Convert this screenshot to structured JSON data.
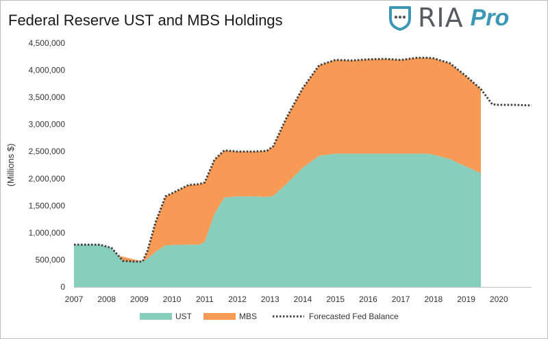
{
  "header": {
    "title": "Federal Reserve UST and MBS Holdings",
    "logo_text": "RIA",
    "logo_pro": "Pro"
  },
  "colors": {
    "ust": "#88cebc",
    "mbs": "#f79a55",
    "forecast": "#404040",
    "logo_gray": "#555b60",
    "logo_blue": "#3a97b5"
  },
  "chart_data": {
    "type": "area",
    "title": "Federal Reserve UST and MBS Holdings",
    "xlabel": "",
    "ylabel": "(Millions $)",
    "xlim": [
      2007,
      2021
    ],
    "ylim": [
      0,
      4500000
    ],
    "yticks": [
      0,
      500000,
      1000000,
      1500000,
      2000000,
      2500000,
      3000000,
      3500000,
      4000000,
      4500000
    ],
    "ytick_labels": [
      "0",
      "500,000",
      "1,000,000",
      "1,500,000",
      "2,000,000",
      "2,500,000",
      "3,000,000",
      "3,500,000",
      "4,000,000",
      "4,500,000"
    ],
    "xticks": [
      2007,
      2008,
      2009,
      2010,
      2011,
      2012,
      2013,
      2014,
      2015,
      2016,
      2017,
      2018,
      2019,
      2020
    ],
    "xtick_labels": [
      "2007",
      "2008",
      "2009",
      "2010",
      "2011",
      "2012",
      "2013",
      "2014",
      "2015",
      "2016",
      "2017",
      "2018",
      "2019",
      "2020"
    ],
    "grid": false,
    "stacked": true,
    "series": [
      {
        "name": "UST",
        "x": [
          2007,
          2007.8,
          2008.15,
          2008.5,
          2008.8,
          2009.1,
          2009.25,
          2009.5,
          2009.8,
          2010.5,
          2010.85,
          2011.0,
          2011.3,
          2011.6,
          2012.0,
          2012.5,
          2012.9,
          2013.1,
          2013.5,
          2014.0,
          2014.5,
          2015.0,
          2015.5,
          2016.0,
          2016.5,
          2017.0,
          2017.5,
          2017.8,
          2018.0,
          2018.5,
          2019.0,
          2019.45
        ],
        "values": [
          780000,
          780000,
          720000,
          480000,
          470000,
          470000,
          520000,
          650000,
          770000,
          780000,
          780000,
          830000,
          1350000,
          1650000,
          1670000,
          1670000,
          1660000,
          1680000,
          1900000,
          2200000,
          2420000,
          2460000,
          2460000,
          2460000,
          2460000,
          2460000,
          2460000,
          2460000,
          2440000,
          2360000,
          2220000,
          2100000
        ]
      },
      {
        "name": "MBS",
        "x": [
          2007,
          2009.1,
          2009.25,
          2009.5,
          2009.8,
          2010.5,
          2010.85,
          2011.0,
          2011.3,
          2011.6,
          2012.0,
          2012.5,
          2012.9,
          2013.1,
          2013.5,
          2014.0,
          2014.5,
          2015.0,
          2015.5,
          2016.0,
          2016.5,
          2017.0,
          2017.5,
          2017.8,
          2018.0,
          2018.5,
          2019.0,
          2019.45
        ],
        "values": [
          0,
          0,
          150000,
          550000,
          900000,
          1100000,
          1120000,
          1100000,
          1000000,
          870000,
          830000,
          830000,
          850000,
          920000,
          1220000,
          1470000,
          1670000,
          1730000,
          1720000,
          1740000,
          1750000,
          1730000,
          1770000,
          1770000,
          1780000,
          1770000,
          1670000,
          1550000
        ]
      }
    ],
    "forecast": {
      "name": "Forecasted Fed Balance",
      "x": [
        2007,
        2007.8,
        2008.15,
        2008.5,
        2008.8,
        2009.1,
        2009.25,
        2009.5,
        2009.8,
        2010.5,
        2010.85,
        2011.0,
        2011.3,
        2011.6,
        2012.0,
        2012.5,
        2012.9,
        2013.1,
        2013.5,
        2014.0,
        2014.5,
        2015.0,
        2015.5,
        2016.0,
        2016.5,
        2017.0,
        2017.5,
        2017.8,
        2018.0,
        2018.5,
        2019.0,
        2019.45,
        2019.8,
        2020.0,
        2020.5,
        2021.0
      ],
      "values": [
        780000,
        780000,
        720000,
        480000,
        470000,
        470000,
        670000,
        1200000,
        1670000,
        1880000,
        1900000,
        1930000,
        2350000,
        2520000,
        2500000,
        2500000,
        2510000,
        2600000,
        3120000,
        3670000,
        4090000,
        4190000,
        4180000,
        4200000,
        4210000,
        4190000,
        4230000,
        4230000,
        4220000,
        4130000,
        3890000,
        3650000,
        3370000,
        3360000,
        3360000,
        3350000
      ]
    },
    "legend": {
      "position": "bottom",
      "items": [
        "UST",
        "MBS",
        "Forecasted Fed Balance"
      ]
    }
  }
}
